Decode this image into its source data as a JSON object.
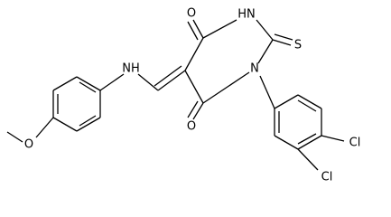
{
  "atoms": [
    {
      "label": "O"
    },
    {
      "label": "HN"
    },
    {
      "label": "S"
    },
    {
      "label": "N"
    },
    {
      "label": "O"
    },
    {
      "label": "NH"
    },
    {
      "label": "Cl"
    },
    {
      "label": "Cl"
    },
    {
      "label": "O"
    }
  ]
}
